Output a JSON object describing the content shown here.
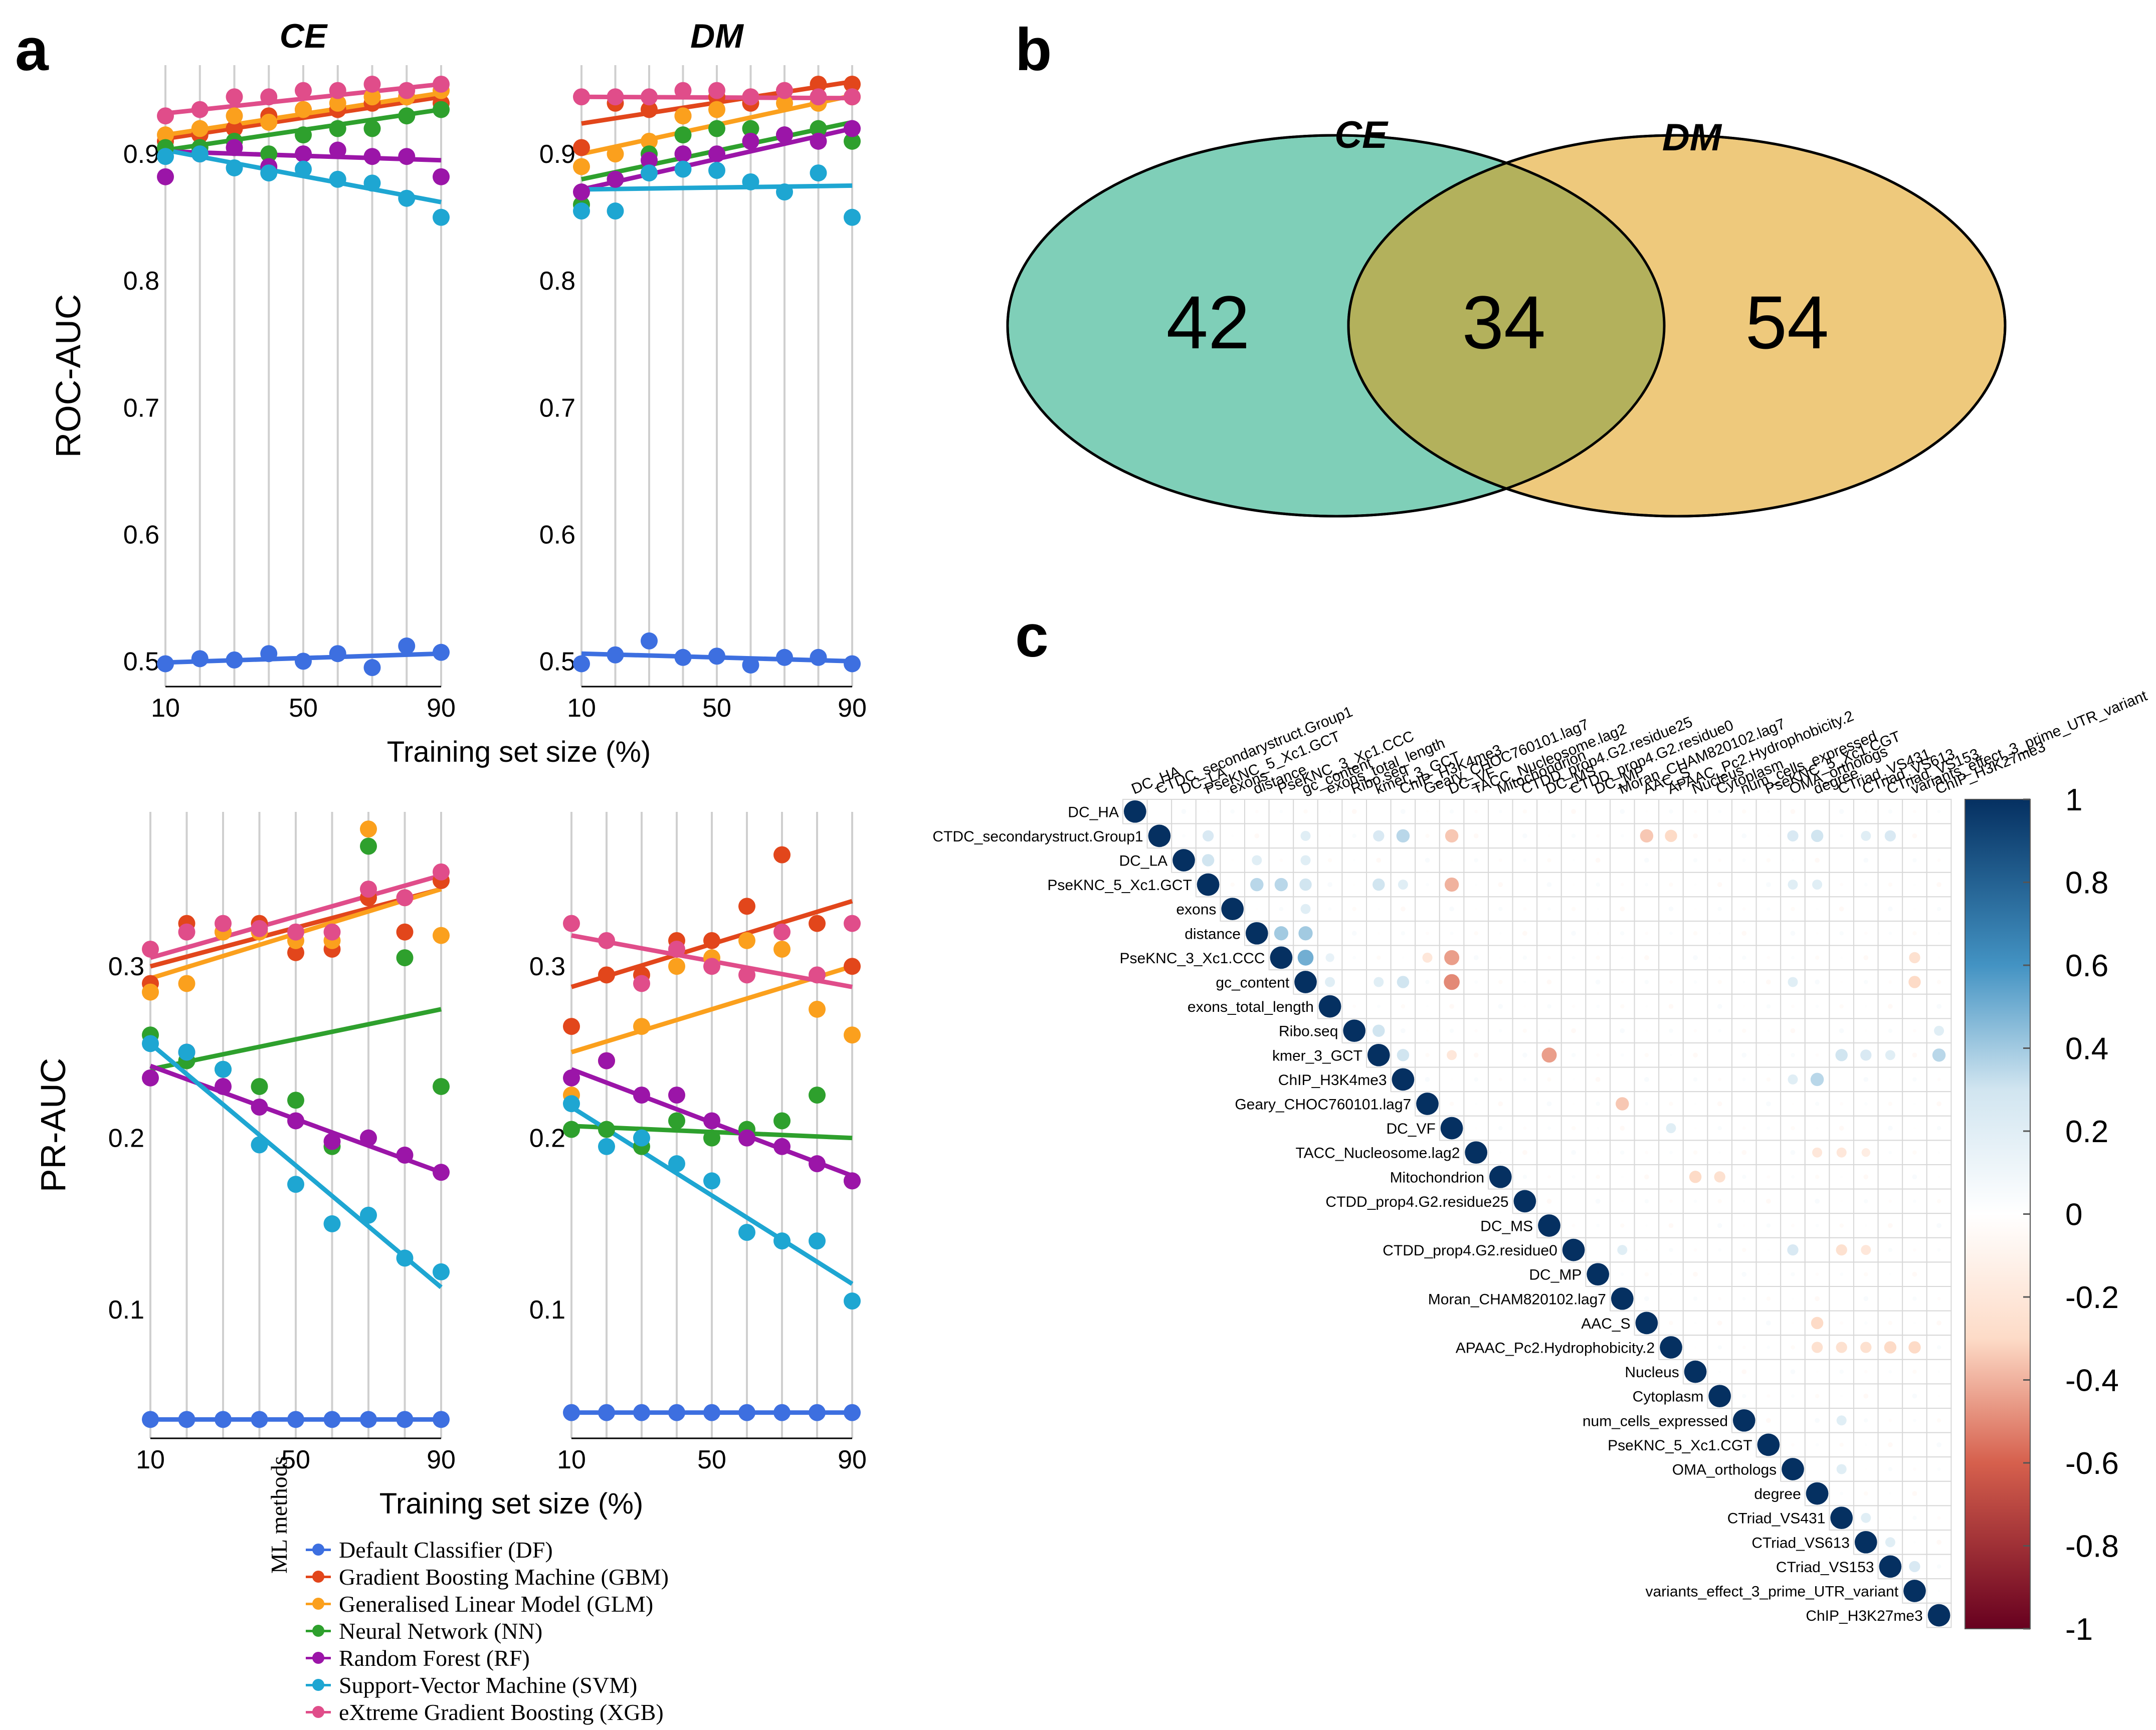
{
  "panels": {
    "a": "a",
    "b": "b",
    "c": "c"
  },
  "colors": {
    "DF": "#3d6fe0",
    "GBM": "#e2461b",
    "GLM": "#fba01d",
    "NN": "#2ea02d",
    "RF": "#9b15a8",
    "SVM": "#1ea6d2",
    "XGB": "#e04d8a"
  },
  "legend": {
    "title": "ML methods",
    "items": [
      {
        "key": "DF",
        "label": "Default Classifier (DF)"
      },
      {
        "key": "GBM",
        "label": "Gradient Boosting Machine (GBM)"
      },
      {
        "key": "GLM",
        "label": "Generalised Linear Model (GLM)"
      },
      {
        "key": "NN",
        "label": "Neural Network (NN)"
      },
      {
        "key": "RF",
        "label": "Random Forest (RF)"
      },
      {
        "key": "SVM",
        "label": "Support-Vector Machine (SVM)"
      },
      {
        "key": "XGB",
        "label": "eXtreme Gradient Boosting (XGB)"
      }
    ]
  },
  "chart_data": [
    {
      "id": "roc-ce",
      "type": "scatter",
      "title": "CE",
      "metric": "ROC-AUC",
      "xlabel": "Training set size (%)",
      "ylabel": "ROC-AUC",
      "xlim": [
        10,
        90
      ],
      "ylim": [
        0.48,
        0.97
      ],
      "xticks": [
        10,
        50,
        90
      ],
      "yticks": [
        0.5,
        0.6,
        0.7,
        0.8,
        0.9
      ],
      "x": [
        10,
        20,
        30,
        40,
        50,
        60,
        70,
        80,
        90
      ],
      "series": [
        {
          "name": "DF",
          "values": [
            0.498,
            0.502,
            0.501,
            0.506,
            0.5,
            0.506,
            0.495,
            0.512,
            0.507
          ],
          "trend": [
            0.499,
            0.506
          ]
        },
        {
          "name": "GBM",
          "values": [
            0.91,
            0.915,
            0.92,
            0.93,
            0.935,
            0.935,
            0.94,
            0.945,
            0.94
          ],
          "trend": [
            0.912,
            0.945
          ]
        },
        {
          "name": "GLM",
          "values": [
            0.915,
            0.92,
            0.93,
            0.925,
            0.935,
            0.94,
            0.945,
            0.945,
            0.95
          ],
          "trend": [
            0.915,
            0.948
          ]
        },
        {
          "name": "NN",
          "values": [
            0.905,
            0.905,
            0.91,
            0.9,
            0.915,
            0.92,
            0.92,
            0.93,
            0.935
          ],
          "trend": [
            0.903,
            0.935
          ]
        },
        {
          "name": "RF",
          "values": [
            0.882,
            0.9,
            0.905,
            0.89,
            0.9,
            0.903,
            0.898,
            0.898,
            0.882
          ],
          "trend": [
            0.902,
            0.895
          ]
        },
        {
          "name": "SVM",
          "values": [
            0.898,
            0.9,
            0.889,
            0.885,
            0.888,
            0.88,
            0.877,
            0.865,
            0.85
          ],
          "trend": [
            0.903,
            0.862
          ]
        },
        {
          "name": "XGB",
          "values": [
            0.93,
            0.935,
            0.945,
            0.945,
            0.95,
            0.95,
            0.955,
            0.95,
            0.955
          ],
          "trend": [
            0.932,
            0.955
          ]
        }
      ]
    },
    {
      "id": "roc-dm",
      "type": "scatter",
      "title": "DM",
      "metric": "ROC-AUC",
      "xlabel": "Training set size (%)",
      "ylabel": "",
      "xlim": [
        10,
        90
      ],
      "ylim": [
        0.48,
        0.97
      ],
      "xticks": [
        10,
        50,
        90
      ],
      "yticks": [
        0.5,
        0.6,
        0.7,
        0.8,
        0.9
      ],
      "x": [
        10,
        20,
        30,
        40,
        50,
        60,
        70,
        80,
        90
      ],
      "series": [
        {
          "name": "DF",
          "values": [
            0.498,
            0.505,
            0.516,
            0.503,
            0.504,
            0.497,
            0.503,
            0.503,
            0.498
          ],
          "trend": [
            0.506,
            0.5
          ]
        },
        {
          "name": "GBM",
          "values": [
            0.905,
            0.94,
            0.935,
            0.93,
            0.945,
            0.94,
            0.95,
            0.955,
            0.955
          ],
          "trend": [
            0.924,
            0.957
          ]
        },
        {
          "name": "GLM",
          "values": [
            0.89,
            0.9,
            0.91,
            0.93,
            0.935,
            0.945,
            0.94,
            0.94,
            0.945
          ],
          "trend": [
            0.9,
            0.946
          ]
        },
        {
          "name": "NN",
          "values": [
            0.86,
            0.88,
            0.9,
            0.915,
            0.92,
            0.92,
            0.915,
            0.92,
            0.91
          ],
          "trend": [
            0.88,
            0.925
          ]
        },
        {
          "name": "RF",
          "values": [
            0.87,
            0.88,
            0.895,
            0.9,
            0.9,
            0.91,
            0.915,
            0.91,
            0.92
          ],
          "trend": [
            0.872,
            0.92
          ]
        },
        {
          "name": "SVM",
          "values": [
            0.855,
            0.855,
            0.885,
            0.888,
            0.887,
            0.878,
            0.87,
            0.885,
            0.85
          ],
          "trend": [
            0.872,
            0.875
          ]
        },
        {
          "name": "XGB",
          "values": [
            0.945,
            0.945,
            0.945,
            0.95,
            0.95,
            0.945,
            0.95,
            0.945,
            0.945
          ],
          "trend": [
            0.945,
            0.944
          ]
        }
      ]
    },
    {
      "id": "pr-ce",
      "type": "scatter",
      "title": "",
      "metric": "PR-AUC",
      "xlabel": "Training set size (%)",
      "ylabel": "PR-AUC",
      "xlim": [
        10,
        90
      ],
      "ylim": [
        0.025,
        0.39
      ],
      "xticks": [
        10,
        50,
        90
      ],
      "yticks": [
        0.1,
        0.2,
        0.3
      ],
      "x": [
        10,
        20,
        30,
        40,
        50,
        60,
        70,
        80,
        90
      ],
      "series": [
        {
          "name": "DF",
          "values": [
            0.036,
            0.036,
            0.036,
            0.036,
            0.036,
            0.036,
            0.036,
            0.036,
            0.036
          ],
          "trend": [
            0.036,
            0.036
          ]
        },
        {
          "name": "GBM",
          "values": [
            0.29,
            0.325,
            0.32,
            0.325,
            0.308,
            0.31,
            0.34,
            0.32,
            0.35
          ],
          "trend": [
            0.3,
            0.345
          ]
        },
        {
          "name": "GLM",
          "values": [
            0.285,
            0.29,
            0.32,
            0.32,
            0.315,
            0.315,
            0.38,
            0.34,
            0.318
          ],
          "trend": [
            0.293,
            0.345
          ]
        },
        {
          "name": "NN",
          "values": [
            0.26,
            0.245,
            0.24,
            0.23,
            0.222,
            0.195,
            0.37,
            0.305,
            0.23
          ],
          "trend": [
            0.24,
            0.275
          ]
        },
        {
          "name": "RF",
          "values": [
            0.235,
            0.25,
            0.23,
            0.218,
            0.21,
            0.198,
            0.2,
            0.19,
            0.18
          ],
          "trend": [
            0.242,
            0.18
          ]
        },
        {
          "name": "SVM",
          "values": [
            0.255,
            0.25,
            0.24,
            0.196,
            0.173,
            0.15,
            0.155,
            0.13,
            0.122
          ],
          "trend": [
            0.255,
            0.113
          ]
        },
        {
          "name": "XGB",
          "values": [
            0.31,
            0.32,
            0.325,
            0.322,
            0.32,
            0.32,
            0.345,
            0.34,
            0.355
          ],
          "trend": [
            0.305,
            0.353
          ]
        }
      ]
    },
    {
      "id": "pr-dm",
      "type": "scatter",
      "title": "",
      "metric": "PR-AUC",
      "xlabel": "Training set size (%)",
      "ylabel": "",
      "xlim": [
        10,
        90
      ],
      "ylim": [
        0.025,
        0.39
      ],
      "xticks": [
        10,
        50,
        90
      ],
      "yticks": [
        0.1,
        0.2,
        0.3
      ],
      "x": [
        10,
        20,
        30,
        40,
        50,
        60,
        70,
        80,
        90
      ],
      "series": [
        {
          "name": "DF",
          "values": [
            0.04,
            0.04,
            0.04,
            0.04,
            0.04,
            0.04,
            0.04,
            0.04,
            0.04
          ],
          "trend": [
            0.04,
            0.04
          ]
        },
        {
          "name": "GBM",
          "values": [
            0.265,
            0.295,
            0.295,
            0.315,
            0.315,
            0.335,
            0.365,
            0.325,
            0.3
          ],
          "trend": [
            0.288,
            0.338
          ]
        },
        {
          "name": "GLM",
          "values": [
            0.225,
            0.245,
            0.265,
            0.3,
            0.305,
            0.315,
            0.31,
            0.275,
            0.26
          ],
          "trend": [
            0.25,
            0.3
          ]
        },
        {
          "name": "NN",
          "values": [
            0.205,
            0.205,
            0.195,
            0.21,
            0.2,
            0.205,
            0.21,
            0.225,
            0.175
          ],
          "trend": [
            0.207,
            0.2
          ]
        },
        {
          "name": "RF",
          "values": [
            0.235,
            0.245,
            0.225,
            0.225,
            0.21,
            0.2,
            0.195,
            0.185,
            0.175
          ],
          "trend": [
            0.24,
            0.178
          ]
        },
        {
          "name": "SVM",
          "values": [
            0.22,
            0.195,
            0.2,
            0.185,
            0.175,
            0.145,
            0.14,
            0.14,
            0.105
          ],
          "trend": [
            0.218,
            0.115
          ]
        },
        {
          "name": "XGB",
          "values": [
            0.325,
            0.315,
            0.29,
            0.31,
            0.3,
            0.295,
            0.32,
            0.295,
            0.325
          ],
          "trend": [
            0.318,
            0.288
          ]
        }
      ]
    },
    {
      "id": "venn",
      "type": "venn",
      "sets": [
        {
          "name": "CE",
          "only": 42,
          "color": "#7fcfb8"
        },
        {
          "name": "DM",
          "only": 54,
          "color": "#eec97c"
        }
      ],
      "intersection": 34,
      "intersection_color": "#b3b15c"
    },
    {
      "id": "corr",
      "type": "heatmap",
      "shape": "upper-triangle-circles",
      "labels": [
        "DC_HA",
        "CTDC_secondarystruct.Group1",
        "DC_LA",
        "PseKNC_5_Xc1.GCT",
        "exons",
        "distance",
        "PseKNC_3_Xc1.CCC",
        "gc_content",
        "exons_total_length",
        "Ribo.seq",
        "kmer_3_GCT",
        "ChIP_H3K4me3",
        "Geary_CHOC760101.lag7",
        "DC_VF",
        "TACC_Nucleosome.lag2",
        "Mitochondrion",
        "CTDD_prop4.G2.residue25",
        "DC_MS",
        "CTDD_prop4.G2.residue0",
        "DC_MP",
        "Moran_CHAM820102.lag7",
        "AAC_S",
        "APAAC_Pc2.Hydrophobicity.2",
        "Nucleus",
        "Cytoplasm",
        "num_cells_expressed",
        "PseKNC_5_Xc1.CGT",
        "OMA_orthologs",
        "degree",
        "CTriad_VS431",
        "CTriad_VS613",
        "CTriad_VS153",
        "variants_effect_3_prime_UTR_variant",
        "ChIP_H3K27me3"
      ],
      "colorbar_ticks": [
        "1",
        "0.8",
        "0.6",
        "0.4",
        "0.2",
        "0",
        "-0.2",
        "-0.4",
        "-0.6",
        "-0.8",
        "-1"
      ],
      "range": [
        -1,
        1
      ],
      "notable": [
        {
          "i": 1,
          "j": 3,
          "r": 0.25
        },
        {
          "i": 1,
          "j": 7,
          "r": 0.2
        },
        {
          "i": 1,
          "j": 10,
          "r": 0.25
        },
        {
          "i": 1,
          "j": 11,
          "r": 0.35
        },
        {
          "i": 1,
          "j": 13,
          "r": -0.35
        },
        {
          "i": 1,
          "j": 21,
          "r": -0.35
        },
        {
          "i": 1,
          "j": 22,
          "r": -0.3
        },
        {
          "i": 1,
          "j": 27,
          "r": 0.25
        },
        {
          "i": 1,
          "j": 28,
          "r": 0.3
        },
        {
          "i": 1,
          "j": 30,
          "r": 0.2
        },
        {
          "i": 1,
          "j": 31,
          "r": 0.25
        },
        {
          "i": 2,
          "j": 3,
          "r": 0.3
        },
        {
          "i": 2,
          "j": 5,
          "r": 0.2
        },
        {
          "i": 2,
          "j": 7,
          "r": 0.2
        },
        {
          "i": 3,
          "j": 5,
          "r": 0.35
        },
        {
          "i": 3,
          "j": 6,
          "r": 0.35
        },
        {
          "i": 3,
          "j": 7,
          "r": 0.3
        },
        {
          "i": 3,
          "j": 10,
          "r": 0.3
        },
        {
          "i": 3,
          "j": 11,
          "r": 0.2
        },
        {
          "i": 3,
          "j": 13,
          "r": -0.4
        },
        {
          "i": 3,
          "j": 27,
          "r": 0.2
        },
        {
          "i": 3,
          "j": 28,
          "r": 0.2
        },
        {
          "i": 4,
          "j": 7,
          "r": 0.2
        },
        {
          "i": 5,
          "j": 6,
          "r": 0.4
        },
        {
          "i": 5,
          "j": 7,
          "r": 0.4
        },
        {
          "i": 6,
          "j": 7,
          "r": 0.5
        },
        {
          "i": 6,
          "j": 8,
          "r": 0.15
        },
        {
          "i": 6,
          "j": 13,
          "r": -0.45
        },
        {
          "i": 6,
          "j": 12,
          "r": -0.2
        },
        {
          "i": 6,
          "j": 32,
          "r": -0.25
        },
        {
          "i": 7,
          "j": 8,
          "r": 0.2
        },
        {
          "i": 7,
          "j": 10,
          "r": 0.2
        },
        {
          "i": 7,
          "j": 11,
          "r": 0.3
        },
        {
          "i": 7,
          "j": 13,
          "r": -0.5
        },
        {
          "i": 7,
          "j": 32,
          "r": -0.3
        },
        {
          "i": 7,
          "j": 27,
          "r": 0.2
        },
        {
          "i": 9,
          "j": 10,
          "r": 0.3
        },
        {
          "i": 9,
          "j": 33,
          "r": 0.2
        },
        {
          "i": 10,
          "j": 11,
          "r": 0.3
        },
        {
          "i": 10,
          "j": 13,
          "r": -0.2
        },
        {
          "i": 10,
          "j": 17,
          "r": -0.45
        },
        {
          "i": 10,
          "j": 29,
          "r": 0.3
        },
        {
          "i": 10,
          "j": 30,
          "r": 0.25
        },
        {
          "i": 10,
          "j": 31,
          "r": 0.2
        },
        {
          "i": 10,
          "j": 33,
          "r": 0.35
        },
        {
          "i": 11,
          "j": 28,
          "r": 0.35
        },
        {
          "i": 11,
          "j": 27,
          "r": 0.2
        },
        {
          "i": 12,
          "j": 20,
          "r": -0.35
        },
        {
          "i": 13,
          "j": 22,
          "r": 0.2
        },
        {
          "i": 14,
          "j": 28,
          "r": -0.2
        },
        {
          "i": 14,
          "j": 29,
          "r": -0.2
        },
        {
          "i": 14,
          "j": 30,
          "r": -0.15
        },
        {
          "i": 15,
          "j": 23,
          "r": -0.3
        },
        {
          "i": 15,
          "j": 24,
          "r": -0.25
        },
        {
          "i": 18,
          "j": 20,
          "r": 0.2
        },
        {
          "i": 18,
          "j": 27,
          "r": 0.25
        },
        {
          "i": 18,
          "j": 29,
          "r": -0.25
        },
        {
          "i": 18,
          "j": 30,
          "r": -0.2
        },
        {
          "i": 21,
          "j": 28,
          "r": -0.3
        },
        {
          "i": 22,
          "j": 28,
          "r": -0.25
        },
        {
          "i": 22,
          "j": 29,
          "r": -0.25
        },
        {
          "i": 22,
          "j": 30,
          "r": -0.25
        },
        {
          "i": 22,
          "j": 31,
          "r": -0.3
        },
        {
          "i": 22,
          "j": 32,
          "r": -0.3
        },
        {
          "i": 25,
          "j": 29,
          "r": 0.2
        },
        {
          "i": 27,
          "j": 29,
          "r": 0.2
        },
        {
          "i": 29,
          "j": 30,
          "r": 0.2
        },
        {
          "i": 30,
          "j": 31,
          "r": 0.2
        },
        {
          "i": 31,
          "j": 32,
          "r": 0.25
        }
      ]
    }
  ]
}
